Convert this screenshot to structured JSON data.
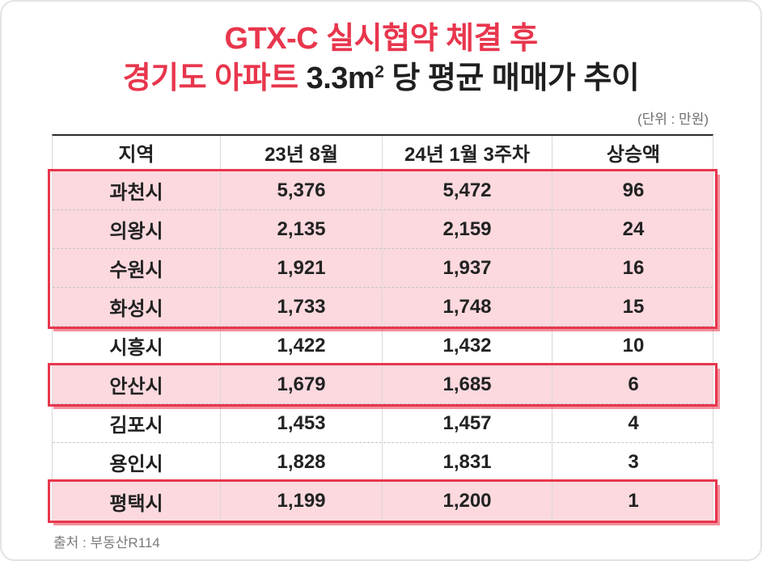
{
  "colors": {
    "accent_red": "#e8364d",
    "highlight_background": "#fbd9de",
    "text": "#222222",
    "muted": "#6e6e6e"
  },
  "title": {
    "line1": "GTX-C 실시협약 체결 후",
    "line2_red": "경기도 아파트",
    "line2_black_pre": " 3.3m",
    "line2_sup": "2",
    "line2_black_post": " 당 평균 매매가 추이"
  },
  "unit_label": "(단위 : 만원)",
  "table": {
    "headers": [
      "지역",
      "23년 8월",
      "24년 1월 3주차",
      "상승액"
    ],
    "rows": [
      [
        "과천시",
        "5,376",
        "5,472",
        "96"
      ],
      [
        "의왕시",
        "2,135",
        "2,159",
        "24"
      ],
      [
        "수원시",
        "1,921",
        "1,937",
        "16"
      ],
      [
        "화성시",
        "1,733",
        "1,748",
        "15"
      ],
      [
        "시흥시",
        "1,422",
        "1,432",
        "10"
      ],
      [
        "안산시",
        "1,679",
        "1,685",
        "6"
      ],
      [
        "김포시",
        "1,453",
        "1,457",
        "4"
      ],
      [
        "용인시",
        "1,828",
        "1,831",
        "3"
      ],
      [
        "평택시",
        "1,199",
        "1,200",
        "1"
      ]
    ]
  },
  "source": "출처 : 부동산R114",
  "chart_data": {
    "type": "table",
    "title": "GTX-C 실시협약 체결 후 경기도 아파트 3.3m² 당 평균 매매가 추이",
    "unit": "단위 : 만원",
    "columns": [
      "지역",
      "23년 8월",
      "24년 1월 3주차",
      "상승액"
    ],
    "rows": [
      [
        "과천시",
        5376,
        5472,
        96
      ],
      [
        "의왕시",
        2135,
        2159,
        24
      ],
      [
        "수원시",
        1921,
        1937,
        16
      ],
      [
        "화성시",
        1733,
        1748,
        15
      ],
      [
        "시흥시",
        1422,
        1432,
        10
      ],
      [
        "안산시",
        1679,
        1685,
        6
      ],
      [
        "김포시",
        1453,
        1457,
        4
      ],
      [
        "용인시",
        1828,
        1831,
        3
      ],
      [
        "평택시",
        1199,
        1200,
        1
      ]
    ],
    "highlighted_rows": [
      "과천시",
      "의왕시",
      "수원시",
      "화성시",
      "안산시",
      "평택시"
    ],
    "source": "출처 : 부동산R114"
  }
}
